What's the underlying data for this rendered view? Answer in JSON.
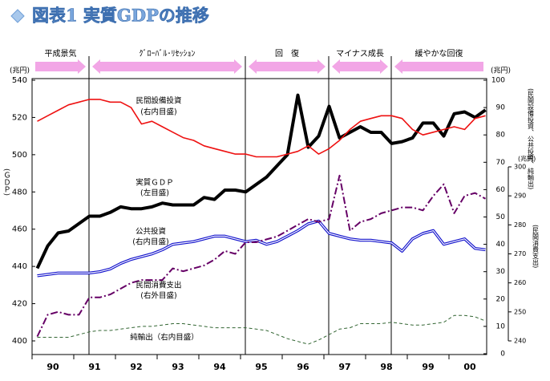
{
  "chart_data": {
    "type": "line",
    "title": "図表1 実質GDPの推移",
    "phases": [
      "平成景気",
      "ｸﾞﾛｰﾊﾞﾙ･ﾘｾｯｼｮﾝ",
      "回　復",
      "マイナス成長",
      "緩やかな回復"
    ],
    "x_labels": [
      "90",
      "91",
      "92",
      "93",
      "94",
      "95",
      "96",
      "97",
      "98",
      "99",
      "00"
    ],
    "ylabel": "(兆円)",
    "ylabel_side": "(ＧＤＰ)",
    "y2label": "(兆円)",
    "y2label_side": "(民間設備投資、公共投資、純輸出)",
    "y3label": "(兆円)",
    "y3label_side": "(民間消費支出)",
    "ylim": [
      400,
      540
    ],
    "yticks": [
      400,
      420,
      440,
      460,
      480,
      500,
      520,
      540
    ],
    "y2lim": [
      0,
      100
    ],
    "y2ticks": [
      0,
      10,
      20,
      30,
      40,
      50,
      60,
      70,
      80,
      90,
      100
    ],
    "y3lim": [
      240,
      300
    ],
    "y3ticks": [
      240,
      250,
      260,
      270,
      280,
      290,
      300
    ],
    "annotations": [
      "民間設備投資",
      "(右内目盛)",
      "実質ＧＤＰ",
      "(左目盛)",
      "公共投資",
      "(右内目盛)",
      "民間消費支出",
      "(右外目盛)",
      "純輸出（右内目盛）"
    ],
    "series": [
      {
        "name": "実質ＧＤＰ",
        "color": "#000000",
        "axis": "y",
        "style": "thick",
        "values": [
          439,
          451,
          458,
          459,
          463,
          467,
          467,
          469,
          472,
          471,
          471,
          472,
          474,
          473,
          473,
          473,
          477,
          476,
          481,
          481,
          480,
          484,
          488,
          494,
          500,
          532,
          504,
          510,
          526,
          509,
          512,
          515,
          512,
          512,
          506,
          507,
          509,
          517,
          517,
          510,
          522,
          523,
          520,
          524
        ]
      },
      {
        "name": "民間設備投資",
        "color": "#ee1111",
        "axis": "y2",
        "style": "solid",
        "values": [
          85,
          87,
          89,
          91,
          92,
          93,
          93,
          92,
          92,
          90,
          84,
          85,
          83,
          81,
          79,
          78,
          76,
          75,
          74,
          73,
          73,
          72,
          72,
          72,
          73,
          74,
          76,
          73,
          75,
          78,
          82,
          85,
          86,
          87,
          87,
          86,
          82,
          80,
          81,
          82,
          83,
          82,
          86,
          87
        ]
      },
      {
        "name": "公共投資",
        "color": "#1111cc",
        "axis": "y2",
        "style": "double",
        "values": [
          28.5,
          29,
          29.5,
          29.5,
          29.5,
          29.5,
          30,
          31,
          33,
          34.5,
          35.5,
          36.5,
          38,
          40,
          40.5,
          41,
          42,
          43,
          43,
          42,
          41,
          41.5,
          40,
          41,
          43,
          45,
          47.5,
          48.5,
          44,
          43,
          42,
          41.5,
          41.5,
          41,
          40.5,
          37.5,
          42,
          44,
          45,
          40,
          41,
          42,
          38.5,
          38
        ]
      },
      {
        "name": "民間消費支出",
        "color": "#660066",
        "axis": "y3",
        "style": "dashdot",
        "values": [
          241.5,
          249,
          250,
          249,
          249,
          255,
          255,
          256,
          258,
          260,
          261,
          261,
          261,
          265,
          264,
          265,
          266,
          268,
          271,
          270,
          274,
          274,
          275,
          276,
          278,
          280,
          282,
          281,
          282,
          297,
          278,
          281,
          282,
          284,
          285,
          286,
          286,
          285,
          290,
          294,
          284,
          290,
          291,
          289
        ]
      },
      {
        "name": "純輸出",
        "color": "#336633",
        "axis": "y2",
        "style": "dashed",
        "values": [
          6,
          6,
          6,
          6,
          7,
          8,
          8.5,
          8.5,
          9,
          9.5,
          10,
          10,
          10.5,
          11,
          11,
          10.5,
          10,
          9.5,
          9.5,
          9.5,
          9.5,
          9,
          8.5,
          7,
          5.5,
          4.5,
          3.5,
          5,
          7,
          9,
          9.5,
          11,
          11,
          11,
          11.5,
          11,
          10.5,
          10.5,
          11,
          11.5,
          14,
          14,
          13.5,
          12
        ]
      }
    ]
  }
}
